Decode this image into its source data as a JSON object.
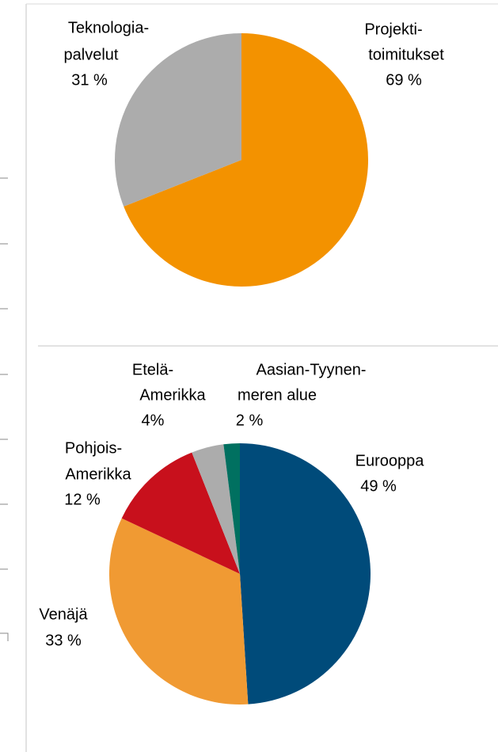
{
  "chart_data": [
    {
      "type": "pie",
      "categories": [
        [
          "Projekti-",
          "toimitukset"
        ],
        [
          "Teknologia-",
          "palvelut"
        ]
      ],
      "values": [
        69,
        31
      ],
      "value_labels": [
        "69 %",
        "31 %"
      ],
      "colors": [
        "#f39200",
        "#acacac"
      ]
    },
    {
      "type": "pie",
      "categories": [
        [
          "Eurooppa"
        ],
        [
          "Venäjä"
        ],
        [
          "Pohjois-",
          "Amerikka"
        ],
        [
          "Etelä-",
          "Amerikka"
        ],
        [
          "Aasian-Tyynen-",
          "meren alue"
        ]
      ],
      "values": [
        49,
        33,
        12,
        4,
        2
      ],
      "value_labels": [
        "49 %",
        "33 %",
        "12 %",
        "4%",
        "2 %"
      ],
      "colors": [
        "#004b7a",
        "#f09a33",
        "#c8101c",
        "#acacac",
        "#007060"
      ]
    }
  ]
}
